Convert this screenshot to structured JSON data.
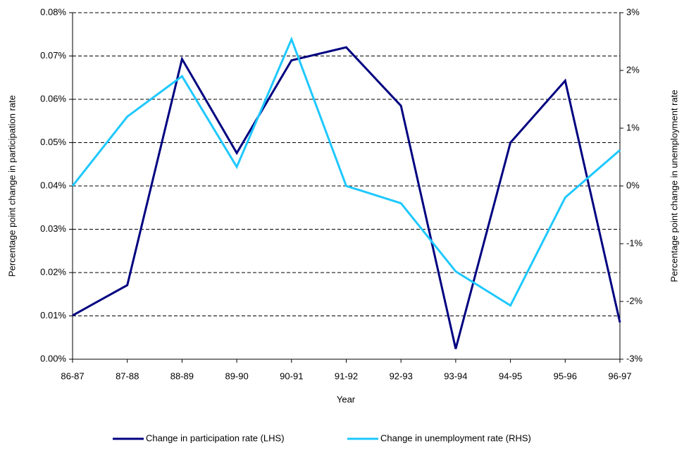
{
  "chart_data": {
    "type": "line",
    "x_label": "Year",
    "y_label": "Percentage point change in participation rate",
    "y2_label": "Percentage point change in unemployment rate",
    "categories": [
      "86-87",
      "87-88",
      "88-89",
      "89-90",
      "90-91",
      "91-92",
      "92-93",
      "93-94",
      "94-95",
      "95-96",
      "96-97"
    ],
    "series": [
      {
        "name": "Change in participation rate (LHS)",
        "color": "#000080",
        "values": [
          0.0101,
          0.0171,
          0.0693,
          0.0476,
          0.069,
          0.072,
          0.0585,
          0.0024,
          0.05,
          0.0643,
          0.0085
        ]
      },
      {
        "name": "Change in unemployment rate (RHS)",
        "color": "#1ec8ff",
        "axis": "y2",
        "values": [
          0,
          1.2,
          1.9,
          0.33,
          2.54,
          0,
          -0.3,
          -1.48,
          -2.07,
          -0.2,
          0.62
        ]
      }
    ],
    "ylim": [
      0,
      0.08
    ],
    "yticks": [
      {
        "value": 0,
        "label": "0.00%"
      },
      {
        "value": 0.01,
        "label": "0.01%"
      },
      {
        "value": 0.02,
        "label": "0.02%"
      },
      {
        "value": 0.03,
        "label": "0.03%"
      },
      {
        "value": 0.04,
        "label": "0.04%"
      },
      {
        "value": 0.05,
        "label": "0.05%"
      },
      {
        "value": 0.06,
        "label": "0.06%"
      },
      {
        "value": 0.07,
        "label": "0.07%"
      },
      {
        "value": 0.08,
        "label": "0.08%"
      }
    ],
    "y2lim": [
      -3,
      3
    ],
    "y2ticks": [
      {
        "value": -3,
        "label": "-3%"
      },
      {
        "value": -2,
        "label": "-2%"
      },
      {
        "value": -1,
        "label": "-1%"
      },
      {
        "value": 0,
        "label": "0%"
      },
      {
        "value": 1,
        "label": "1%"
      },
      {
        "value": 2,
        "label": "2%"
      },
      {
        "value": 3,
        "label": "3%"
      }
    ],
    "grid": true,
    "legend": "bottom"
  }
}
